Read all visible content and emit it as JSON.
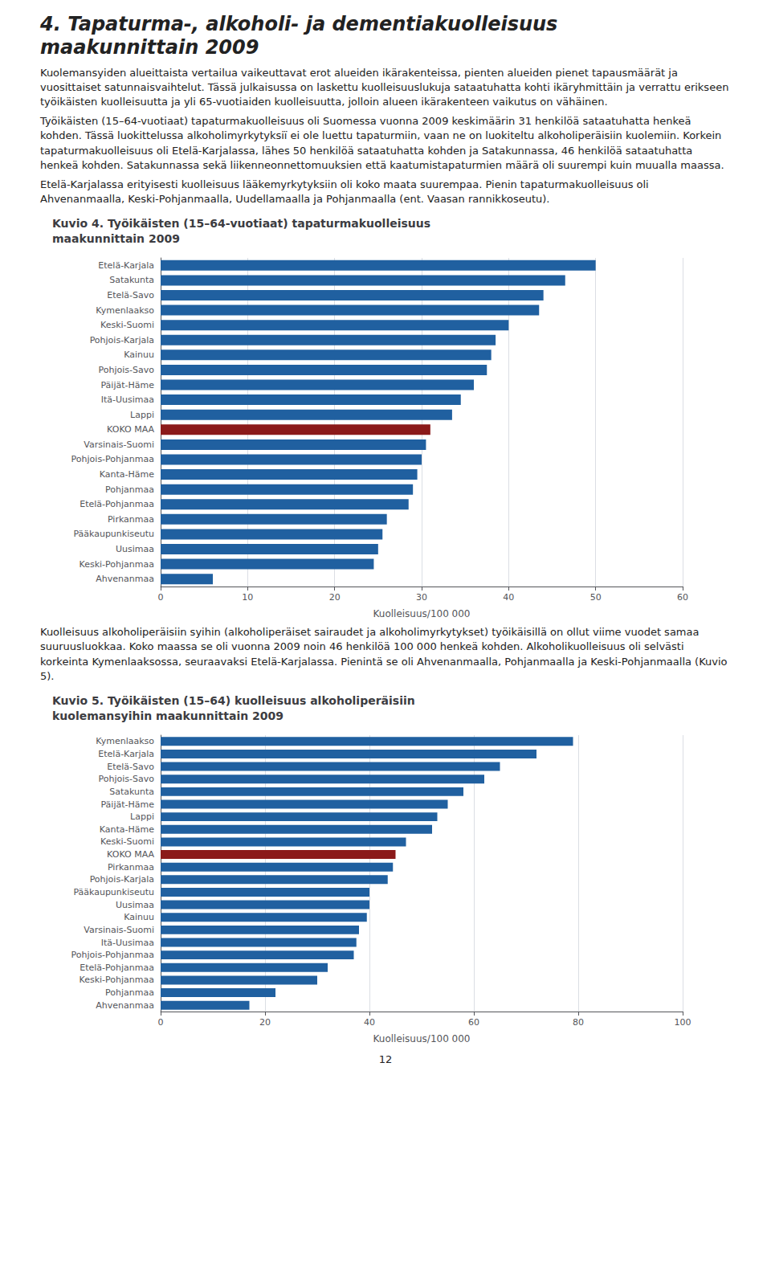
{
  "title": "4. Tapaturma-, alkoholi- ja dementiakuolleisuus\nmaakunnittain 2009",
  "annotations": [
    "12"
  ],
  "chart_data": [
    {
      "type": "bar",
      "orientation": "horizontal",
      "title": "Kuvio 4. Työikäisten (15–64-vuotiaat) tapaturmakuolleisuus\nmaakunnittain 2009",
      "annotations": [
        "Kuolemansyiden alueittaista vertailua vaikeuttavat erot alueiden ikärakenteissa, pienten alueiden pienet tapausmäärät ja vuosittaiset satunnaisvaihtelut. Tässä julkaisussa on laskettu kuolleisuuslukuja sataatuhatta kohti ikäryhmittäin ja verrattu erikseen työikäisten kuolleisuutta ja yli 65-vuotiaiden kuolleisuutta, jolloin alueen ikärakenteen vaikutus on vähäinen.",
        "Työikäisten (15–64-vuotiaat) tapaturmakuolleisuus oli Suomessa vuonna 2009 keskimäärin 31 henkilöä sataatuhatta henkeä kohden. Tässä luokittelussa alkoholimyrkytyksiï ei ole luettu tapaturmiin, vaan ne on luokiteltu alkoholiperäisiin kuolemiin. Korkein tapaturmakuolleisuus oli Etelä-Karjalassa, lähes 50 henkilöä sataatuhatta kohden ja Satakunnassa, 46 henkilöä sataatuhatta henkeä kohden. Satakunnassa sekä liikenneonnettomuuksien että kaatumistapaturmien määrä oli suurempi kuin muualla maassa.",
        "Etelä-Karjalassa erityisesti kuolleisuus lääkemyrkytyksiin oli koko maata suurempaa. Pienin tapaturmakuolleisuus oli Ahvenanmaalla, Keski-Pohjanmaalla, Uudellamaalla ja Pohjanmaalla (ent. Vaasan rannikkoseutu)."
      ],
      "categories": [
        "Etelä-Karjala",
        "Satakunta",
        "Etelä-Savo",
        "Kymenlaakso",
        "Keski-Suomi",
        "Pohjois-Karjala",
        "Kainuu",
        "Pohjois-Savo",
        "Päijät-Häme",
        "Itä-Uusimaa",
        "Lappi",
        "KOKO MAA",
        "Varsinais-Suomi",
        "Pohjois-Pohjanmaa",
        "Kanta-Häme",
        "Pohjanmaa",
        "Etelä-Pohjanmaa",
        "Pirkanmaa",
        "Pääkaupunkiseutu",
        "Uusimaa",
        "Keski-Pohjanmaa",
        "Ahvenanmaa"
      ],
      "values": [
        50.0,
        46.5,
        44.0,
        43.5,
        40.0,
        38.5,
        38.0,
        37.5,
        36.0,
        34.5,
        33.5,
        31.0,
        30.5,
        30.0,
        29.5,
        29.0,
        28.5,
        26.0,
        25.5,
        25.0,
        24.5,
        6.0
      ],
      "colors": [
        "#2060A0",
        "#2060A0",
        "#2060A0",
        "#2060A0",
        "#2060A0",
        "#2060A0",
        "#2060A0",
        "#2060A0",
        "#2060A0",
        "#2060A0",
        "#2060A0",
        "#8B1A1A",
        "#2060A0",
        "#2060A0",
        "#2060A0",
        "#2060A0",
        "#2060A0",
        "#2060A0",
        "#2060A0",
        "#2060A0",
        "#2060A0",
        "#2060A0"
      ],
      "xlabel": "Kuolleisuus/100 000",
      "xlim": [
        0,
        60
      ],
      "xticks": [
        0,
        10,
        20,
        30,
        40,
        50,
        60
      ],
      "grid": true
    },
    {
      "type": "bar",
      "orientation": "horizontal",
      "title": "Kuvio 5. Työikäisten (15–64) kuolleisuus alkoholiperäisiin\nkuolemansyihin maakunnittain 2009",
      "annotations": [
        "Kuolleisuus alkoholiperäisiin syihin (alkoholiperäiset sairaudet ja alkoholimyrkytykset) työikäisillä on ollut viime vuodet samaa suuruusluokkaa. Koko maassa se oli vuonna 2009 noin 46 henkilöä 100 000 henkeä kohden. Alkoholikuolleisuus oli selvästi korkeinta Kymenlaaksossa, seuraavaksi Etelä-Karjalassa. Pienintä se oli Ahvenanmaalla, Pohjanmaalla ja Keski-Pohjanmaalla (Kuvio 5)."
      ],
      "categories": [
        "Kymenlaakso",
        "Etelä-Karjala",
        "Etelä-Savo",
        "Pohjois-Savo",
        "Satakunta",
        "Päijät-Häme",
        "Lappi",
        "Kanta-Häme",
        "Keski-Suomi",
        "KOKO MAA",
        "Pirkanmaa",
        "Pohjois-Karjala",
        "Pääkaupunkiseutu",
        "Uusimaa",
        "Kainuu",
        "Varsinais-Suomi",
        "Itä-Uusimaa",
        "Pohjois-Pohjanmaa",
        "Etelä-Pohjanmaa",
        "Keski-Pohjanmaa",
        "Pohjanmaa",
        "Ahvenanmaa"
      ],
      "values": [
        79.0,
        72.0,
        65.0,
        62.0,
        58.0,
        55.0,
        53.0,
        52.0,
        47.0,
        45.0,
        44.5,
        43.5,
        40.0,
        40.0,
        39.5,
        38.0,
        37.5,
        37.0,
        32.0,
        30.0,
        22.0,
        17.0
      ],
      "colors": [
        "#2060A0",
        "#2060A0",
        "#2060A0",
        "#2060A0",
        "#2060A0",
        "#2060A0",
        "#2060A0",
        "#2060A0",
        "#2060A0",
        "#8B1A1A",
        "#2060A0",
        "#2060A0",
        "#2060A0",
        "#2060A0",
        "#2060A0",
        "#2060A0",
        "#2060A0",
        "#2060A0",
        "#2060A0",
        "#2060A0",
        "#2060A0",
        "#2060A0"
      ],
      "xlabel": "Kuolleisuus/100 000",
      "xlim": [
        0,
        100
      ],
      "xticks": [
        0,
        20,
        40,
        60,
        80,
        100
      ],
      "grid": true
    }
  ]
}
